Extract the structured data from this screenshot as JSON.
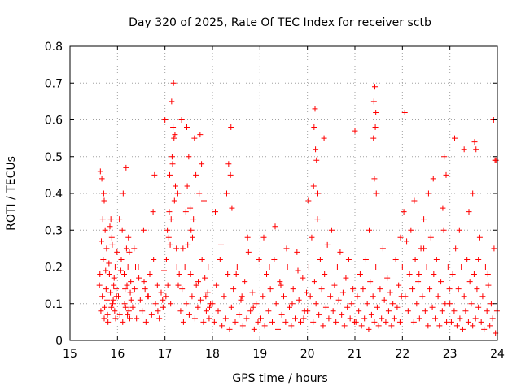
{
  "chart_data": {
    "type": "scatter",
    "title": "Day 320 of 2025, Rate Of TEC Index for receiver sctb",
    "xlabel": "GPS time / hours",
    "ylabel": "ROTI / TECUs",
    "xlim": [
      15,
      24
    ],
    "ylim": [
      0,
      0.8
    ],
    "xticks": [
      "15",
      "16",
      "17",
      "18",
      "19",
      "20",
      "21",
      "22",
      "23",
      "24"
    ],
    "yticks": [
      "0",
      "0.1",
      "0.2",
      "0.3",
      "0.4",
      "0.5",
      "0.6",
      "0.7",
      "0.8"
    ],
    "grid": true,
    "marker": "+",
    "color": "#ff0000",
    "series": [
      {
        "x": [
          15.62,
          15.65,
          15.68,
          15.7,
          15.72,
          15.75,
          15.78,
          15.8,
          15.64,
          15.67,
          15.71,
          15.74,
          15.77,
          15.63,
          15.69,
          15.73,
          15.76,
          15.66,
          15.72,
          15.79,
          15.82,
          15.85,
          15.88,
          15.9,
          15.93,
          15.96,
          15.99,
          15.84,
          15.87,
          15.92,
          15.95,
          15.98,
          15.83,
          15.89,
          15.94,
          15.97,
          15.86,
          15.91,
          16.02,
          16.05,
          16.08,
          16.11,
          16.14,
          16.17,
          16.2,
          16.23,
          16.26,
          16.29,
          16.04,
          16.07,
          16.12,
          16.16,
          16.19,
          16.24,
          16.28,
          16.1,
          16.15,
          16.22,
          16.27,
          16.18,
          16.21,
          16.25,
          16.32,
          16.36,
          16.4,
          16.44,
          16.48,
          16.52,
          16.56,
          16.6,
          16.64,
          16.68,
          16.72,
          16.76,
          16.8,
          16.84,
          16.88,
          16.92,
          16.96,
          16.35,
          16.45,
          16.55,
          16.65,
          16.75,
          16.85,
          16.95,
          16.38,
          16.58,
          16.78,
          16.98,
          17.0,
          17.03,
          17.06,
          17.09,
          17.12,
          17.15,
          17.18,
          17.21,
          17.24,
          17.27,
          17.3,
          17.05,
          17.1,
          17.14,
          17.19,
          17.25,
          17.02,
          17.08,
          17.13,
          17.17,
          17.22,
          17.28,
          17.16,
          17.2,
          17.11,
          17.33,
          17.36,
          17.39,
          17.42,
          17.45,
          17.48,
          17.51,
          17.54,
          17.57,
          17.6,
          17.63,
          17.66,
          17.69,
          17.72,
          17.75,
          17.78,
          17.81,
          17.84,
          17.87,
          17.9,
          17.93,
          17.96,
          17.35,
          17.44,
          17.5,
          17.58,
          17.65,
          17.74,
          17.82,
          17.91,
          17.38,
          17.47,
          17.55,
          17.62,
          17.7,
          17.77,
          17.86,
          17.94,
          17.46,
          17.53,
          18.0,
          18.04,
          18.08,
          18.12,
          18.16,
          18.2,
          18.24,
          18.28,
          18.32,
          18.36,
          18.4,
          18.44,
          18.48,
          18.52,
          18.56,
          18.6,
          18.64,
          18.68,
          18.72,
          18.76,
          18.8,
          18.84,
          18.88,
          18.92,
          18.96,
          18.06,
          18.18,
          18.3,
          18.38,
          18.5,
          18.62,
          18.74,
          18.86,
          18.98,
          18.34,
          18.39,
          18.41,
          19.02,
          19.06,
          19.1,
          19.14,
          19.18,
          19.22,
          19.26,
          19.3,
          19.34,
          19.38,
          19.42,
          19.46,
          19.5,
          19.54,
          19.58,
          19.62,
          19.66,
          19.7,
          19.74,
          19.78,
          19.82,
          19.86,
          19.9,
          19.94,
          19.98,
          19.08,
          19.2,
          19.32,
          19.44,
          19.56,
          19.68,
          19.8,
          19.92,
          20.0,
          20.03,
          20.06,
          20.09,
          20.12,
          20.15,
          20.18,
          20.21,
          20.24,
          20.27,
          20.3,
          20.33,
          20.36,
          20.39,
          20.42,
          20.45,
          20.48,
          20.51,
          20.54,
          20.57,
          20.6,
          20.63,
          20.66,
          20.69,
          20.72,
          20.75,
          20.78,
          20.81,
          20.84,
          20.87,
          20.9,
          20.93,
          20.96,
          20.99,
          20.14,
          20.16,
          20.17,
          20.19,
          20.13,
          20.22,
          20.35,
          20.02,
          21.02,
          21.05,
          21.08,
          21.11,
          21.14,
          21.17,
          21.2,
          21.23,
          21.26,
          21.29,
          21.32,
          21.35,
          21.38,
          21.41,
          21.44,
          21.47,
          21.5,
          21.53,
          21.56,
          21.59,
          21.62,
          21.65,
          21.68,
          21.71,
          21.74,
          21.77,
          21.8,
          21.83,
          21.86,
          21.89,
          21.92,
          21.95,
          21.98,
          21.4,
          21.42,
          21.43,
          21.39,
          21.44,
          21.41,
          21.45,
          21.0,
          21.3,
          22.0,
          22.03,
          22.06,
          22.09,
          22.12,
          22.15,
          22.18,
          22.21,
          22.24,
          22.27,
          22.3,
          22.33,
          22.36,
          22.39,
          22.42,
          22.45,
          22.48,
          22.51,
          22.54,
          22.57,
          22.6,
          22.63,
          22.66,
          22.69,
          22.72,
          22.75,
          22.78,
          22.81,
          22.84,
          22.87,
          22.9,
          22.93,
          22.96,
          22.99,
          22.05,
          22.25,
          22.45,
          22.65,
          22.85,
          21.96,
          22.35,
          22.55,
          23.0,
          23.03,
          23.06,
          23.09,
          23.12,
          23.15,
          23.18,
          23.21,
          23.24,
          23.27,
          23.3,
          23.33,
          23.36,
          23.39,
          23.42,
          23.45,
          23.48,
          23.51,
          23.54,
          23.57,
          23.6,
          23.63,
          23.66,
          23.69,
          23.72,
          23.75,
          23.78,
          23.81,
          23.84,
          23.87,
          23.9,
          23.93,
          23.96,
          23.99,
          22.88,
          22.92,
          23.1,
          23.3,
          23.48,
          23.52,
          23.55,
          23.92,
          23.95,
          23.97,
          23.2,
          23.4,
          23.6,
          23.8
        ],
        "y": [
          0.15,
          0.08,
          0.12,
          0.22,
          0.06,
          0.19,
          0.11,
          0.05,
          0.46,
          0.44,
          0.4,
          0.3,
          0.25,
          0.18,
          0.33,
          0.09,
          0.14,
          0.27,
          0.38,
          0.07,
          0.21,
          0.13,
          0.28,
          0.1,
          0.17,
          0.06,
          0.24,
          0.31,
          0.09,
          0.15,
          0.2,
          0.12,
          0.18,
          0.26,
          0.08,
          0.14,
          0.33,
          0.11,
          0.12,
          0.07,
          0.22,
          0.05,
          0.18,
          0.09,
          0.15,
          0.28,
          0.06,
          0.11,
          0.33,
          0.19,
          0.4,
          0.14,
          0.25,
          0.08,
          0.16,
          0.3,
          0.1,
          0.2,
          0.13,
          0.47,
          0.07,
          0.24,
          0.09,
          0.14,
          0.06,
          0.2,
          0.11,
          0.08,
          0.16,
          0.05,
          0.12,
          0.18,
          0.07,
          0.22,
          0.1,
          0.15,
          0.06,
          0.13,
          0.09,
          0.25,
          0.17,
          0.3,
          0.12,
          0.35,
          0.08,
          0.11,
          0.2,
          0.14,
          0.45,
          0.19,
          0.6,
          0.22,
          0.15,
          0.35,
          0.1,
          0.5,
          0.7,
          0.56,
          0.25,
          0.4,
          0.18,
          0.3,
          0.45,
          0.65,
          0.55,
          0.2,
          0.12,
          0.28,
          0.33,
          0.58,
          0.42,
          0.15,
          0.48,
          0.38,
          0.26,
          0.08,
          0.14,
          0.05,
          0.2,
          0.1,
          0.26,
          0.07,
          0.18,
          0.12,
          0.33,
          0.06,
          0.15,
          0.09,
          0.4,
          0.11,
          0.22,
          0.05,
          0.17,
          0.08,
          0.13,
          0.06,
          0.1,
          0.6,
          0.35,
          0.5,
          0.28,
          0.45,
          0.56,
          0.38,
          0.2,
          0.25,
          0.42,
          0.3,
          0.55,
          0.16,
          0.48,
          0.12,
          0.09,
          0.58,
          0.36,
          0.1,
          0.05,
          0.15,
          0.08,
          0.22,
          0.04,
          0.12,
          0.06,
          0.18,
          0.03,
          0.09,
          0.14,
          0.05,
          0.2,
          0.07,
          0.11,
          0.04,
          0.16,
          0.06,
          0.24,
          0.08,
          0.13,
          0.03,
          0.1,
          0.05,
          0.35,
          0.26,
          0.4,
          0.45,
          0.18,
          0.12,
          0.28,
          0.09,
          0.22,
          0.48,
          0.58,
          0.36,
          0.06,
          0.12,
          0.04,
          0.18,
          0.08,
          0.14,
          0.05,
          0.22,
          0.1,
          0.03,
          0.16,
          0.07,
          0.12,
          0.05,
          0.2,
          0.09,
          0.04,
          0.14,
          0.06,
          0.24,
          0.11,
          0.05,
          0.17,
          0.08,
          0.13,
          0.28,
          0.2,
          0.31,
          0.15,
          0.25,
          0.1,
          0.19,
          0.06,
          0.08,
          0.2,
          0.12,
          0.28,
          0.05,
          0.16,
          0.1,
          0.33,
          0.07,
          0.22,
          0.14,
          0.04,
          0.18,
          0.09,
          0.26,
          0.06,
          0.12,
          0.3,
          0.08,
          0.15,
          0.05,
          0.2,
          0.11,
          0.24,
          0.07,
          0.13,
          0.04,
          0.17,
          0.09,
          0.22,
          0.06,
          0.1,
          0.14,
          0.05,
          0.58,
          0.63,
          0.52,
          0.49,
          0.42,
          0.4,
          0.55,
          0.38,
          0.05,
          0.12,
          0.08,
          0.18,
          0.04,
          0.14,
          0.06,
          0.22,
          0.1,
          0.03,
          0.16,
          0.07,
          0.12,
          0.05,
          0.2,
          0.09,
          0.04,
          0.14,
          0.06,
          0.25,
          0.11,
          0.05,
          0.17,
          0.08,
          0.13,
          0.04,
          0.1,
          0.06,
          0.22,
          0.09,
          0.15,
          0.05,
          0.12,
          0.65,
          0.69,
          0.58,
          0.55,
          0.62,
          0.44,
          0.4,
          0.57,
          0.3,
          0.2,
          0.35,
          0.12,
          0.27,
          0.08,
          0.18,
          0.3,
          0.14,
          0.05,
          0.22,
          0.1,
          0.16,
          0.06,
          0.25,
          0.12,
          0.33,
          0.08,
          0.2,
          0.04,
          0.14,
          0.28,
          0.09,
          0.18,
          0.06,
          0.22,
          0.12,
          0.04,
          0.16,
          0.08,
          0.3,
          0.1,
          0.05,
          0.2,
          0.14,
          0.62,
          0.38,
          0.25,
          0.44,
          0.36,
          0.28,
          0.18,
          0.4,
          0.1,
          0.05,
          0.18,
          0.08,
          0.25,
          0.04,
          0.14,
          0.06,
          0.2,
          0.03,
          0.12,
          0.08,
          0.22,
          0.05,
          0.16,
          0.1,
          0.04,
          0.18,
          0.06,
          0.14,
          0.09,
          0.28,
          0.05,
          0.12,
          0.03,
          0.2,
          0.08,
          0.15,
          0.04,
          0.1,
          0.06,
          0.25,
          0.02,
          0.08,
          0.5,
          0.45,
          0.55,
          0.52,
          0.4,
          0.54,
          0.52,
          0.6,
          0.49,
          0.49,
          0.3,
          0.35,
          0.22,
          0.18
        ]
      }
    ]
  }
}
